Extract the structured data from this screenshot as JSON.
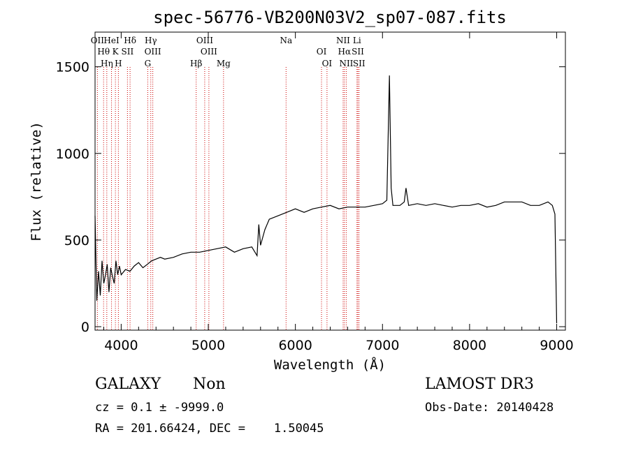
{
  "chart_data": {
    "type": "line",
    "title": "spec-56776-VB200N03V2_sp07-087.fits",
    "xlabel": "Wavelength (Å)",
    "ylabel": "Flux (relative)",
    "xlim": [
      3700,
      9100
    ],
    "ylim": [
      -20,
      1700
    ],
    "xticks": [
      4000,
      5000,
      6000,
      7000,
      8000,
      9000
    ],
    "yticks": [
      0,
      500,
      1000,
      1500
    ],
    "xticklabels": [
      "4000",
      "5000",
      "6000",
      "7000",
      "8000",
      "9000"
    ],
    "yticklabels": [
      "0",
      "500",
      "1000",
      "1500"
    ],
    "series": [
      {
        "name": "flux",
        "x": [
          3700,
          3720,
          3740,
          3760,
          3780,
          3800,
          3820,
          3840,
          3860,
          3880,
          3900,
          3920,
          3940,
          3960,
          3980,
          4000,
          4050,
          4100,
          4150,
          4200,
          4250,
          4300,
          4350,
          4400,
          4450,
          4500,
          4600,
          4700,
          4800,
          4900,
          5000,
          5100,
          5200,
          5300,
          5400,
          5500,
          5560,
          5580,
          5600,
          5650,
          5700,
          5800,
          5900,
          6000,
          6100,
          6200,
          6300,
          6400,
          6500,
          6600,
          6700,
          6800,
          6900,
          7000,
          7050,
          7080,
          7100,
          7120,
          7200,
          7250,
          7270,
          7300,
          7400,
          7500,
          7600,
          7700,
          7800,
          7900,
          8000,
          8100,
          8200,
          8300,
          8400,
          8500,
          8600,
          8700,
          8800,
          8900,
          8950,
          8980,
          9000
        ],
        "y": [
          640,
          150,
          320,
          180,
          380,
          250,
          300,
          360,
          200,
          340,
          290,
          250,
          380,
          300,
          350,
          300,
          330,
          320,
          350,
          370,
          340,
          360,
          380,
          390,
          400,
          390,
          400,
          420,
          430,
          430,
          440,
          450,
          460,
          430,
          450,
          460,
          410,
          590,
          470,
          560,
          620,
          640,
          660,
          680,
          660,
          680,
          690,
          700,
          680,
          690,
          690,
          690,
          700,
          710,
          730,
          1450,
          800,
          700,
          700,
          720,
          800,
          700,
          710,
          700,
          710,
          700,
          690,
          700,
          700,
          710,
          690,
          700,
          720,
          720,
          720,
          700,
          700,
          720,
          700,
          650,
          20
        ]
      }
    ],
    "spectral_lines": [
      {
        "label": "OII",
        "wavelength": 3727
      },
      {
        "label": "Hθ",
        "wavelength": 3798
      },
      {
        "label": "Hη",
        "wavelength": 3835
      },
      {
        "label": "HeI",
        "wavelength": 3889
      },
      {
        "label": "K",
        "wavelength": 3934
      },
      {
        "label": "H",
        "wavelength": 3968
      },
      {
        "label": "Hδ",
        "wavelength": 4102
      },
      {
        "label": "SII",
        "wavelength": 4072
      },
      {
        "label": "G",
        "wavelength": 4305
      },
      {
        "label": "Hγ",
        "wavelength": 4340
      },
      {
        "label": "OIII",
        "wavelength": 4363
      },
      {
        "label": "Hβ",
        "wavelength": 4861
      },
      {
        "label": "OIII",
        "wavelength": 4959
      },
      {
        "label": "OIII",
        "wavelength": 5007
      },
      {
        "label": "Mg",
        "wavelength": 5175
      },
      {
        "label": "Na",
        "wavelength": 5893
      },
      {
        "label": "OI",
        "wavelength": 6300
      },
      {
        "label": "OI",
        "wavelength": 6363
      },
      {
        "label": "NII",
        "wavelength": 6548
      },
      {
        "label": "Hα",
        "wavelength": 6563
      },
      {
        "label": "NII",
        "wavelength": 6584
      },
      {
        "label": "Li",
        "wavelength": 6707
      },
      {
        "label": "SII",
        "wavelength": 6717
      },
      {
        "label": "SII",
        "wavelength": 6731
      }
    ]
  },
  "footer": {
    "object_class": "GALAXY",
    "subclass": "Non",
    "survey": "LAMOST DR3",
    "cz": "cz = 0.1 ± -9999.0",
    "obs_date": "Obs-Date: 20140428",
    "radec": "RA = 201.66424, DEC =    1.50045"
  }
}
